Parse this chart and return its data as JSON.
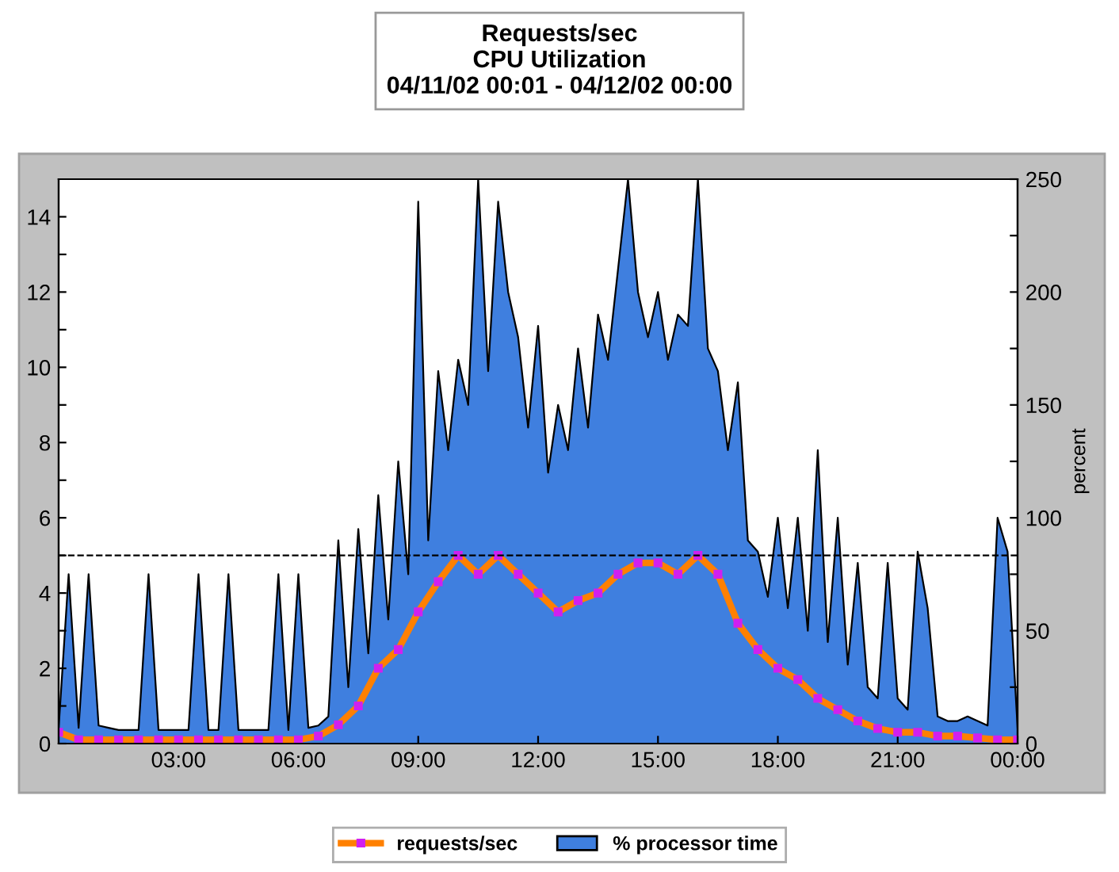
{
  "chart_data": {
    "type": "line",
    "title": "Requests/sec\nCPU Utilization\n04/11/02 00:01 - 04/12/02 00:00",
    "y2label": "percent",
    "xlim": [
      0,
      24
    ],
    "xticks": [
      {
        "value": 3,
        "label": "03:00"
      },
      {
        "value": 6,
        "label": "06:00"
      },
      {
        "value": 9,
        "label": "09:00"
      },
      {
        "value": 12,
        "label": "12:00"
      },
      {
        "value": 15,
        "label": "15:00"
      },
      {
        "value": 18,
        "label": "18:00"
      },
      {
        "value": 21,
        "label": "21:00"
      },
      {
        "value": 24,
        "label": "00:00"
      }
    ],
    "ylim": [
      0,
      15
    ],
    "yticks": [
      0,
      {
        "value": 1,
        "label": null
      },
      2,
      {
        "value": 3,
        "label": null
      },
      4,
      {
        "value": 5,
        "label": null
      },
      6,
      {
        "value": 7,
        "label": null
      },
      8,
      {
        "value": 9,
        "label": null
      },
      10,
      {
        "value": 11,
        "label": null
      },
      12,
      {
        "value": 13,
        "label": null
      },
      14
    ],
    "y2lim": [
      0,
      250
    ],
    "y2ticks": [
      0,
      {
        "value": 25,
        "label": null
      },
      50,
      {
        "value": 75,
        "label": null
      },
      100,
      {
        "value": 125,
        "label": null
      },
      150,
      {
        "value": 175,
        "label": null
      },
      200,
      {
        "value": 225,
        "label": null
      },
      250
    ],
    "ref_lines": [
      {
        "axis": "y",
        "value": 5,
        "color": "#000000",
        "line_style": "dashed"
      }
    ],
    "legend": "bottom",
    "grid": false,
    "series": [
      {
        "name": "% processor time",
        "type": "area",
        "axis": "y2",
        "color": "#3f7fdf",
        "x": [
          0,
          0.25,
          0.5,
          0.75,
          1,
          1.25,
          1.5,
          1.75,
          2,
          2.25,
          2.5,
          2.75,
          3,
          3.25,
          3.5,
          3.75,
          4,
          4.25,
          4.5,
          4.75,
          5,
          5.25,
          5.5,
          5.75,
          6,
          6.25,
          6.5,
          6.75,
          7,
          7.25,
          7.5,
          7.75,
          8,
          8.25,
          8.5,
          8.75,
          9,
          9.25,
          9.5,
          9.75,
          10,
          10.25,
          10.5,
          10.75,
          11,
          11.25,
          11.5,
          11.75,
          12,
          12.25,
          12.5,
          12.75,
          13,
          13.25,
          13.5,
          13.75,
          14,
          14.25,
          14.5,
          14.75,
          15,
          15.25,
          15.5,
          15.75,
          16,
          16.25,
          16.5,
          16.75,
          17,
          17.25,
          17.5,
          17.75,
          18,
          18.25,
          18.5,
          18.75,
          19,
          19.25,
          19.5,
          19.75,
          20,
          20.25,
          20.5,
          20.75,
          21,
          21.25,
          21.5,
          21.75,
          22,
          22.25,
          22.5,
          22.75,
          23,
          23.25,
          23.5,
          23.75,
          24
        ],
        "values": [
          7,
          75,
          7,
          75,
          8,
          7,
          6,
          6,
          6,
          75,
          6,
          6,
          6,
          6,
          75,
          6,
          6,
          75,
          6,
          6,
          6,
          6,
          75,
          6,
          75,
          7,
          8,
          12,
          90,
          25,
          95,
          40,
          110,
          55,
          125,
          75,
          240,
          90,
          165,
          130,
          170,
          150,
          250,
          165,
          240,
          200,
          180,
          140,
          185,
          120,
          150,
          130,
          175,
          140,
          190,
          170,
          210,
          250,
          200,
          180,
          200,
          170,
          190,
          185,
          250,
          175,
          165,
          130,
          160,
          90,
          85,
          65,
          100,
          60,
          100,
          50,
          130,
          45,
          100,
          35,
          80,
          25,
          20,
          80,
          20,
          15,
          85,
          60,
          12,
          10,
          10,
          12,
          10,
          8,
          100,
          85,
          7
        ]
      },
      {
        "name": "requests/sec",
        "type": "line",
        "color": "#ff8000",
        "marker": "square",
        "x": [
          0,
          0.5,
          1,
          1.5,
          2,
          2.5,
          3,
          3.5,
          4,
          4.5,
          5,
          5.5,
          6,
          6.5,
          7,
          7.5,
          8,
          8.5,
          9,
          9.5,
          10,
          10.5,
          11,
          11.5,
          12,
          12.5,
          13,
          13.5,
          14,
          14.5,
          15,
          15.5,
          16,
          16.5,
          17,
          17.5,
          18,
          18.5,
          19,
          19.5,
          20,
          20.5,
          21,
          21.5,
          22,
          22.5,
          23,
          23.5,
          24
        ],
        "values": [
          0.3,
          0.1,
          0.1,
          0.1,
          0.1,
          0.1,
          0.1,
          0.1,
          0.1,
          0.1,
          0.1,
          0.1,
          0.1,
          0.2,
          0.5,
          1.0,
          2.0,
          2.5,
          3.5,
          4.3,
          5.0,
          4.5,
          5.0,
          4.5,
          4.0,
          3.5,
          3.8,
          4.0,
          4.5,
          4.8,
          4.8,
          4.5,
          5.0,
          4.5,
          3.2,
          2.5,
          2.0,
          1.7,
          1.2,
          0.9,
          0.6,
          0.4,
          0.3,
          0.3,
          0.2,
          0.2,
          0.15,
          0.1,
          0.1
        ]
      }
    ]
  }
}
